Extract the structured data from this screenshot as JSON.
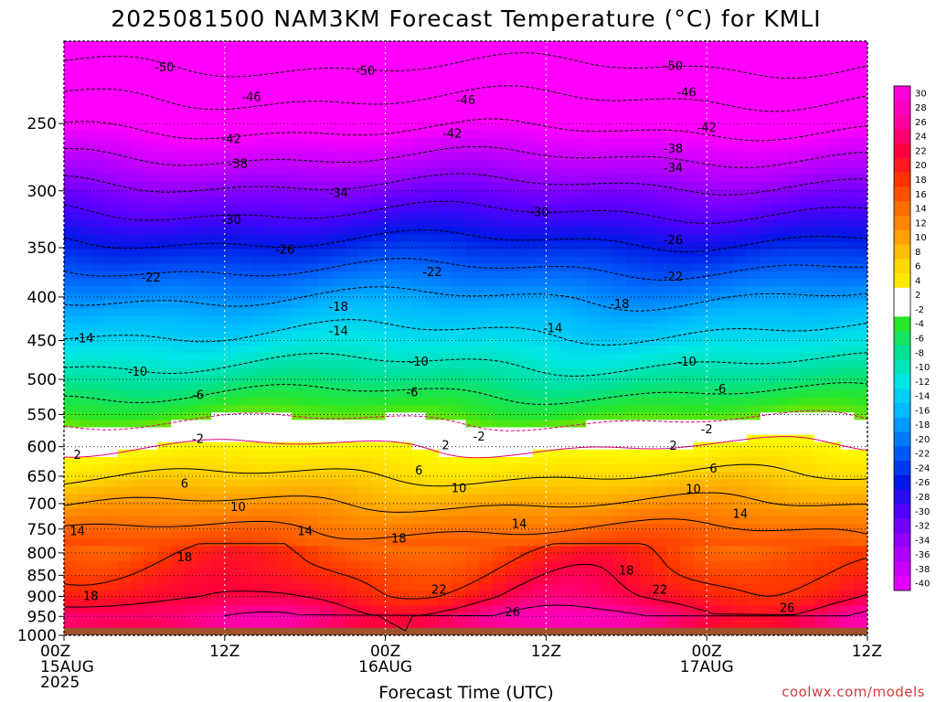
{
  "chart_data": {
    "type": "heatmap",
    "title": "2025081500 NAM3KM Forecast Temperature (°C) for KMLI",
    "xlabel": "Forecast Time (UTC)",
    "ylabel": "",
    "x_range_hours": [
      0,
      60
    ],
    "x_ticks": [
      {
        "h": 0,
        "lines": [
          "00Z",
          "15AUG",
          "2025"
        ]
      },
      {
        "h": 12,
        "lines": [
          "12Z"
        ]
      },
      {
        "h": 24,
        "lines": [
          "00Z",
          "16AUG"
        ]
      },
      {
        "h": 36,
        "lines": [
          "12Z"
        ]
      },
      {
        "h": 48,
        "lines": [
          "00Z",
          "17AUG"
        ]
      },
      {
        "h": 60,
        "lines": [
          "12Z"
        ]
      }
    ],
    "y_scale": "log-pressure",
    "y_range_hpa": [
      1000,
      200
    ],
    "y_ticks": [
      250,
      300,
      350,
      400,
      450,
      500,
      550,
      600,
      650,
      700,
      750,
      800,
      850,
      900,
      950,
      1000
    ],
    "y_tick_labels": [
      "250",
      "300",
      "350",
      "400",
      "450",
      "500",
      "550",
      "600",
      "650",
      "700",
      "750",
      "800",
      "850",
      "900",
      "950",
      "1000"
    ],
    "ground_below_hpa": 980,
    "colorbar_labels": [
      "30",
      "28",
      "26",
      "24",
      "22",
      "20",
      "18",
      "16",
      "14",
      "12",
      "10",
      "8",
      "6",
      "4",
      "2",
      "-2",
      "-4",
      "-6",
      "-8",
      "-10",
      "-12",
      "-14",
      "-16",
      "-18",
      "-20",
      "-22",
      "-24",
      "-26",
      "-28",
      "-30",
      "-32",
      "-34",
      "-36",
      "-38",
      "-40"
    ],
    "profile": {
      "pressure_hpa": [
        1000,
        950,
        900,
        850,
        800,
        750,
        700,
        650,
        600,
        550,
        500,
        450,
        400,
        350,
        300,
        250,
        200
      ],
      "temperature_c": [
        24,
        25,
        21,
        19,
        17,
        14,
        10,
        6,
        2,
        -3,
        -8,
        -13,
        -18,
        -25,
        -33,
        -43,
        -53
      ]
    },
    "contour_labels": [
      {
        "v": "-50",
        "h": 7.5,
        "p": 215
      },
      {
        "v": "-50",
        "h": 22.5,
        "p": 217
      },
      {
        "v": "-50",
        "h": 45.5,
        "p": 214
      },
      {
        "v": "-46",
        "h": 14.0,
        "p": 233
      },
      {
        "v": "-46",
        "h": 30.0,
        "p": 235
      },
      {
        "v": "-46",
        "h": 46.5,
        "p": 230
      },
      {
        "v": "-42",
        "h": 12.5,
        "p": 261
      },
      {
        "v": "-42",
        "h": 29.0,
        "p": 257
      },
      {
        "v": "-42",
        "h": 48.0,
        "p": 253
      },
      {
        "v": "-38",
        "h": 13.0,
        "p": 279
      },
      {
        "v": "-38",
        "h": 45.5,
        "p": 268
      },
      {
        "v": "-34",
        "h": 20.5,
        "p": 302
      },
      {
        "v": "-34",
        "h": 45.5,
        "p": 282
      },
      {
        "v": "-30",
        "h": 12.5,
        "p": 325
      },
      {
        "v": "-30",
        "h": 35.5,
        "p": 318
      },
      {
        "v": "-26",
        "h": 16.5,
        "p": 352
      },
      {
        "v": "-26",
        "h": 45.5,
        "p": 343
      },
      {
        "v": "-22",
        "h": 6.5,
        "p": 380
      },
      {
        "v": "-22",
        "h": 27.5,
        "p": 374
      },
      {
        "v": "-22",
        "h": 45.5,
        "p": 379
      },
      {
        "v": "-18",
        "h": 20.5,
        "p": 411
      },
      {
        "v": "-18",
        "h": 41.5,
        "p": 408
      },
      {
        "v": "-14",
        "h": 1.5,
        "p": 448
      },
      {
        "v": "-14",
        "h": 20.5,
        "p": 439
      },
      {
        "v": "-14",
        "h": 36.5,
        "p": 436
      },
      {
        "v": "-10",
        "h": 5.5,
        "p": 490
      },
      {
        "v": "-10",
        "h": 26.5,
        "p": 477
      },
      {
        "v": "-10",
        "h": 46.5,
        "p": 477
      },
      {
        "v": "-6",
        "h": 10.0,
        "p": 522
      },
      {
        "v": "-6",
        "h": 26.0,
        "p": 518
      },
      {
        "v": "-6",
        "h": 49.0,
        "p": 514
      },
      {
        "v": "-2",
        "h": 10.0,
        "p": 588
      },
      {
        "v": "-2",
        "h": 31.0,
        "p": 584
      },
      {
        "v": "-2",
        "h": 48.0,
        "p": 573
      },
      {
        "v": "2",
        "h": 1.0,
        "p": 614
      },
      {
        "v": "2",
        "h": 28.5,
        "p": 598
      },
      {
        "v": "2",
        "h": 45.5,
        "p": 599
      },
      {
        "v": "6",
        "h": 9.0,
        "p": 664
      },
      {
        "v": "6",
        "h": 26.5,
        "p": 640
      },
      {
        "v": "6",
        "h": 48.5,
        "p": 637
      },
      {
        "v": "10",
        "h": 13.0,
        "p": 707
      },
      {
        "v": "10",
        "h": 29.5,
        "p": 672
      },
      {
        "v": "10",
        "h": 47.0,
        "p": 674
      },
      {
        "v": "14",
        "h": 1.0,
        "p": 755
      },
      {
        "v": "14",
        "h": 18.0,
        "p": 755
      },
      {
        "v": "14",
        "h": 34.0,
        "p": 740
      },
      {
        "v": "14",
        "h": 50.5,
        "p": 720
      },
      {
        "v": "18",
        "h": 9.0,
        "p": 810
      },
      {
        "v": "18",
        "h": 25.0,
        "p": 770
      },
      {
        "v": "18",
        "h": 42.0,
        "p": 840
      },
      {
        "v": "18",
        "h": 2.0,
        "p": 900
      },
      {
        "v": "22",
        "h": 28.0,
        "p": 885
      },
      {
        "v": "22",
        "h": 44.5,
        "p": 885
      },
      {
        "v": "26",
        "h": 33.5,
        "p": 940
      },
      {
        "v": "26",
        "h": 54.0,
        "p": 930
      }
    ]
  },
  "credit": "coolwx.com/models"
}
